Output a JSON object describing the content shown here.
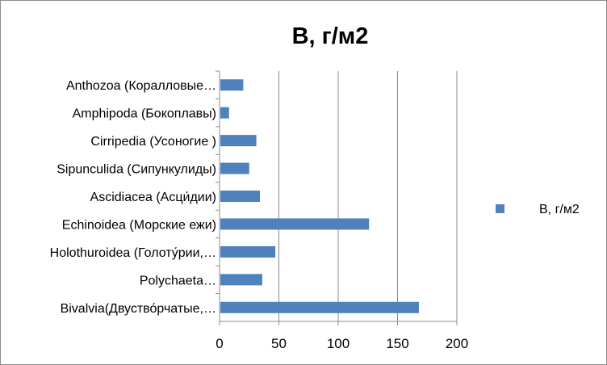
{
  "chart_data": {
    "type": "bar",
    "orientation": "horizontal",
    "title": "B, г/м2",
    "categories": [
      "Bivalvia(Двуство́рчатые,…",
      "Polychaeta…",
      "Holothuroidea (Голоту́рии,…",
      "Echinoidea (Морские ежи)",
      "Ascidiacea (Асци́дии)",
      "Sipunculida (Сипункулиды)",
      "Cirripedia (Усоногие )",
      "Amphipoda (Бокоплавы)",
      "Anthozoa (Коралловые…"
    ],
    "series": [
      {
        "name": "B, г/м2",
        "color": "#4f81bd",
        "values": [
          168,
          36,
          47,
          126,
          34,
          25,
          31,
          8,
          20
        ]
      }
    ],
    "xlim": [
      0,
      200
    ],
    "xticks": [
      "0",
      "50",
      "100",
      "150",
      "200"
    ],
    "grid": true,
    "legend_position": "right"
  }
}
